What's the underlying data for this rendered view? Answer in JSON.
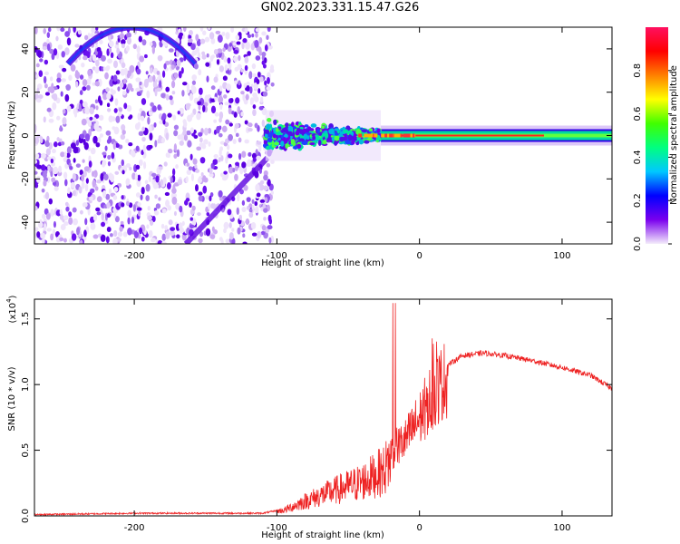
{
  "title": "GN02.2023.331.15.47.G26",
  "chart_data": [
    {
      "type": "heatmap",
      "xlabel": "Height of straight line (km)",
      "ylabel": "Frequency (Hz)",
      "xlim": [
        -270,
        135
      ],
      "ylim": [
        -50,
        50
      ],
      "xticks": [
        -200,
        -100,
        0,
        100
      ],
      "yticks": [
        -40,
        -20,
        0,
        20,
        40
      ],
      "colorbar": {
        "label": "Normalized spectral amplitude",
        "range": [
          0,
          1
        ],
        "ticks": [
          "0.0",
          "0.2",
          "0.4",
          "0.6",
          "0.8"
        ],
        "colors": [
          "#f4ecfb",
          "#7a00ee",
          "#0000ff",
          "#00c8ff",
          "#00ff80",
          "#40ff00",
          "#ffff00",
          "#ff8000",
          "#ff0000",
          "#ff1060"
        ]
      },
      "features": {
        "noise_region_x": [
          -270,
          -108
        ],
        "signal_center_hz": 0,
        "signal_band_start_km": -108
      }
    },
    {
      "type": "line",
      "xlabel": "Height of straight line (km)",
      "ylabel": "SNR (10 * v/v)",
      "ylabel_multiplier": "(x10",
      "ylabel_multiplier_exp": "4",
      "multiplier_close": ")",
      "xlim": [
        -270,
        135
      ],
      "ylim": [
        0,
        1.65
      ],
      "xticks": [
        -200,
        -100,
        0,
        100
      ],
      "yticks": [
        "0.0",
        "0.5",
        "1.0",
        "1.5"
      ],
      "series": [
        {
          "color": "#ee2222",
          "x": [
            -270,
            -200,
            -150,
            -110,
            -95,
            -80,
            -60,
            -40,
            -25,
            -18,
            -10,
            0,
            10,
            20,
            30,
            45,
            60,
            80,
            100,
            120,
            135
          ],
          "y": [
            0.01,
            0.02,
            0.02,
            0.02,
            0.05,
            0.13,
            0.22,
            0.3,
            0.4,
            0.55,
            0.62,
            0.8,
            1.02,
            1.15,
            1.22,
            1.24,
            1.22,
            1.18,
            1.13,
            1.07,
            0.97
          ]
        }
      ]
    }
  ]
}
